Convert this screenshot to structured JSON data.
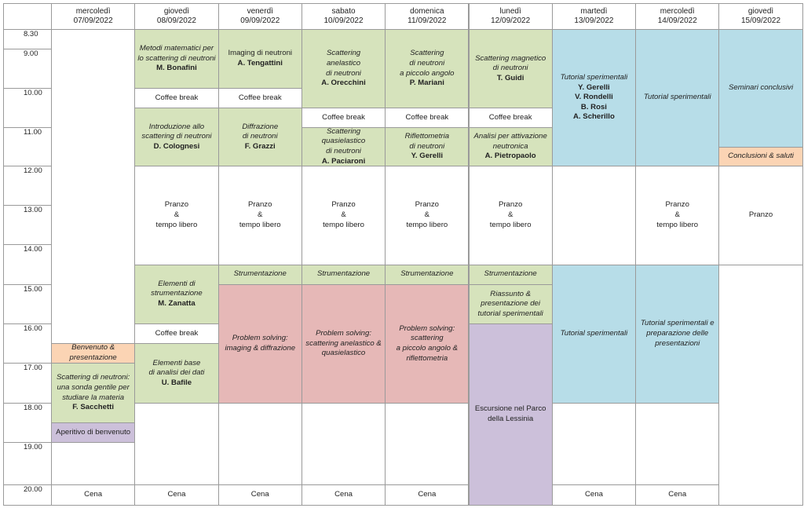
{
  "days": [
    {
      "name": "mercoledì",
      "date": "07/09/2022"
    },
    {
      "name": "giovedì",
      "date": "08/09/2022"
    },
    {
      "name": "venerdì",
      "date": "09/09/2022"
    },
    {
      "name": "sabato",
      "date": "10/09/2022"
    },
    {
      "name": "domenica",
      "date": "11/09/2022"
    },
    {
      "name": "lunedì",
      "date": "12/09/2022"
    },
    {
      "name": "martedì",
      "date": "13/09/2022"
    },
    {
      "name": "mercoledì",
      "date": "14/09/2022"
    },
    {
      "name": "giovedì",
      "date": "15/09/2022"
    }
  ],
  "times": [
    "8.30",
    "9.00",
    "10.00",
    "11.00",
    "12.00",
    "13.00",
    "14.00",
    "15.00",
    "16.00",
    "17.00",
    "18.00",
    "19.00",
    "20.00"
  ],
  "colors": {
    "green": "#d6e3bc",
    "blue": "#b7dde8",
    "pink": "#e6b8b7",
    "purple": "#ccc0da",
    "orange": "#fbd4b4"
  },
  "cells": [
    {
      "day": 0,
      "start": "8.30",
      "end": "16.30",
      "color": "white",
      "lines": []
    },
    {
      "day": 0,
      "start": "16.30",
      "end": "17.00",
      "color": "orange",
      "lines": [
        {
          "t": "Benvenuto &",
          "s": "i"
        },
        {
          "t": "presentazione",
          "s": "i"
        }
      ]
    },
    {
      "day": 0,
      "start": "17.00",
      "end": "18.30",
      "color": "green",
      "lines": [
        {
          "t": "Scattering di neutroni:",
          "s": "i"
        },
        {
          "t": "una sonda gentile per",
          "s": "i"
        },
        {
          "t": "studiare la materia",
          "s": "i"
        },
        {
          "t": "F. Sacchetti",
          "s": "b"
        }
      ]
    },
    {
      "day": 0,
      "start": "18.30",
      "end": "19.00",
      "color": "purple",
      "lines": [
        {
          "t": "Aperitivo di benvenuto",
          "s": "n"
        }
      ]
    },
    {
      "day": 0,
      "start": "19.00",
      "end": "20.00",
      "color": "white",
      "lines": []
    },
    {
      "day": 0,
      "start": "20.00",
      "end": "20.30",
      "color": "white",
      "lines": [
        {
          "t": "Cena",
          "s": "n"
        }
      ]
    },
    {
      "day": 1,
      "start": "8.30",
      "end": "10.00",
      "color": "green",
      "lines": [
        {
          "t": "Metodi matematici per",
          "s": "i"
        },
        {
          "t": "lo scattering di neutroni",
          "s": "i"
        },
        {
          "t": "M. Bonafini",
          "s": "b"
        }
      ]
    },
    {
      "day": 1,
      "start": "10.00",
      "end": "10.30",
      "color": "white",
      "lines": [
        {
          "t": "Coffee break",
          "s": "n"
        }
      ]
    },
    {
      "day": 1,
      "start": "10.30",
      "end": "12.00",
      "color": "green",
      "lines": [
        {
          "t": "Introduzione allo",
          "s": "i"
        },
        {
          "t": "scattering di neutroni",
          "s": "i"
        },
        {
          "t": "D. Colognesi",
          "s": "b"
        }
      ]
    },
    {
      "day": 1,
      "start": "12.00",
      "end": "14.30",
      "color": "white",
      "lines": [
        {
          "t": "Pranzo",
          "s": "n"
        },
        {
          "t": "&",
          "s": "n"
        },
        {
          "t": "tempo libero",
          "s": "n"
        }
      ]
    },
    {
      "day": 1,
      "start": "14.30",
      "end": "16.00",
      "color": "green",
      "lines": [
        {
          "t": "Elementi di",
          "s": "i"
        },
        {
          "t": "strumentazione",
          "s": "i"
        },
        {
          "t": "M. Zanatta",
          "s": "b"
        }
      ]
    },
    {
      "day": 1,
      "start": "16.00",
      "end": "16.30",
      "color": "white",
      "lines": [
        {
          "t": "Coffee break",
          "s": "n"
        }
      ]
    },
    {
      "day": 1,
      "start": "16.30",
      "end": "18.00",
      "color": "green",
      "lines": [
        {
          "t": "Elementi base",
          "s": "i"
        },
        {
          "t": "di analisi dei dati",
          "s": "i"
        },
        {
          "t": "U. Bafile",
          "s": "b"
        }
      ]
    },
    {
      "day": 1,
      "start": "18.00",
      "end": "20.00",
      "color": "white",
      "lines": []
    },
    {
      "day": 1,
      "start": "20.00",
      "end": "20.30",
      "color": "white",
      "lines": [
        {
          "t": "Cena",
          "s": "n"
        }
      ]
    },
    {
      "day": 2,
      "start": "8.30",
      "end": "10.00",
      "color": "green",
      "lines": [
        {
          "t": "Imaging di neutroni",
          "s": "n"
        },
        {
          "t": "A. Tengattini",
          "s": "b"
        }
      ]
    },
    {
      "day": 2,
      "start": "10.00",
      "end": "10.30",
      "color": "white",
      "lines": [
        {
          "t": "Coffee break",
          "s": "n"
        }
      ]
    },
    {
      "day": 2,
      "start": "10.30",
      "end": "12.00",
      "color": "green",
      "lines": [
        {
          "t": "Diffrazione",
          "s": "i"
        },
        {
          "t": "di neutroni",
          "s": "i"
        },
        {
          "t": "F. Grazzi",
          "s": "b"
        }
      ]
    },
    {
      "day": 2,
      "start": "12.00",
      "end": "14.30",
      "color": "white",
      "lines": [
        {
          "t": "Pranzo",
          "s": "n"
        },
        {
          "t": "&",
          "s": "n"
        },
        {
          "t": "tempo libero",
          "s": "n"
        }
      ]
    },
    {
      "day": 2,
      "start": "14.30",
      "end": "15.00",
      "color": "green",
      "lines": [
        {
          "t": "Strumentazione",
          "s": "i"
        }
      ]
    },
    {
      "day": 2,
      "start": "15.00",
      "end": "18.00",
      "color": "pink",
      "lines": [
        {
          "t": "Problem solving:",
          "s": "i"
        },
        {
          "t": "imaging & diffrazione",
          "s": "i"
        }
      ]
    },
    {
      "day": 2,
      "start": "18.00",
      "end": "20.00",
      "color": "white",
      "lines": []
    },
    {
      "day": 2,
      "start": "20.00",
      "end": "20.30",
      "color": "white",
      "lines": [
        {
          "t": "Cena",
          "s": "n"
        }
      ]
    },
    {
      "day": 3,
      "start": "8.30",
      "end": "10.30",
      "color": "green",
      "lines": [
        {
          "t": "Scattering",
          "s": "i"
        },
        {
          "t": "anelastico",
          "s": "i"
        },
        {
          "t": "di neutroni",
          "s": "i"
        },
        {
          "t": "A. Orecchini",
          "s": "b"
        }
      ]
    },
    {
      "day": 3,
      "start": "10.30",
      "end": "11.00",
      "color": "white",
      "lines": [
        {
          "t": "Coffee break",
          "s": "n"
        }
      ]
    },
    {
      "day": 3,
      "start": "11.00",
      "end": "12.00",
      "color": "green",
      "lines": [
        {
          "t": "Scattering",
          "s": "i"
        },
        {
          "t": "quasielastico",
          "s": "i"
        },
        {
          "t": "di neutroni",
          "s": "i"
        },
        {
          "t": "A. Paciaroni",
          "s": "b"
        }
      ]
    },
    {
      "day": 3,
      "start": "12.00",
      "end": "14.30",
      "color": "white",
      "lines": [
        {
          "t": "Pranzo",
          "s": "n"
        },
        {
          "t": "&",
          "s": "n"
        },
        {
          "t": "tempo libero",
          "s": "n"
        }
      ]
    },
    {
      "day": 3,
      "start": "14.30",
      "end": "15.00",
      "color": "green",
      "lines": [
        {
          "t": "Strumentazione",
          "s": "i"
        }
      ]
    },
    {
      "day": 3,
      "start": "15.00",
      "end": "18.00",
      "color": "pink",
      "lines": [
        {
          "t": "Problem solving:",
          "s": "i"
        },
        {
          "t": "scattering anelastico &",
          "s": "i"
        },
        {
          "t": "quasielastico",
          "s": "i"
        }
      ]
    },
    {
      "day": 3,
      "start": "18.00",
      "end": "20.00",
      "color": "white",
      "lines": []
    },
    {
      "day": 3,
      "start": "20.00",
      "end": "20.30",
      "color": "white",
      "lines": [
        {
          "t": "Cena",
          "s": "n"
        }
      ]
    },
    {
      "day": 4,
      "start": "8.30",
      "end": "10.30",
      "color": "green",
      "lines": [
        {
          "t": "Scattering",
          "s": "i"
        },
        {
          "t": "di neutroni",
          "s": "i"
        },
        {
          "t": "a piccolo angolo",
          "s": "i"
        },
        {
          "t": "P. Mariani",
          "s": "b"
        }
      ]
    },
    {
      "day": 4,
      "start": "10.30",
      "end": "11.00",
      "color": "white",
      "lines": [
        {
          "t": "Coffee break",
          "s": "n"
        }
      ]
    },
    {
      "day": 4,
      "start": "11.00",
      "end": "12.00",
      "color": "green",
      "lines": [
        {
          "t": "Riflettometria",
          "s": "i"
        },
        {
          "t": "di neutroni",
          "s": "i"
        },
        {
          "t": "Y. Gerelli",
          "s": "b"
        }
      ]
    },
    {
      "day": 4,
      "start": "12.00",
      "end": "14.30",
      "color": "white",
      "lines": [
        {
          "t": "Pranzo",
          "s": "n"
        },
        {
          "t": "&",
          "s": "n"
        },
        {
          "t": "tempo libero",
          "s": "n"
        }
      ]
    },
    {
      "day": 4,
      "start": "14.30",
      "end": "15.00",
      "color": "green",
      "lines": [
        {
          "t": "Strumentazione",
          "s": "i"
        }
      ]
    },
    {
      "day": 4,
      "start": "15.00",
      "end": "18.00",
      "color": "pink",
      "lines": [
        {
          "t": "Problem solving:",
          "s": "i"
        },
        {
          "t": "scattering",
          "s": "i"
        },
        {
          "t": "a piccolo angolo &",
          "s": "i"
        },
        {
          "t": "riflettometria",
          "s": "i"
        }
      ]
    },
    {
      "day": 4,
      "start": "18.00",
      "end": "20.00",
      "color": "white",
      "lines": []
    },
    {
      "day": 4,
      "start": "20.00",
      "end": "20.30",
      "color": "white",
      "lines": [
        {
          "t": "Cena",
          "s": "n"
        }
      ]
    },
    {
      "day": 5,
      "start": "8.30",
      "end": "10.30",
      "color": "green",
      "lines": [
        {
          "t": "Scattering magnetico",
          "s": "i"
        },
        {
          "t": "di neutroni",
          "s": "i"
        },
        {
          "t": "T. Guidi",
          "s": "b"
        }
      ]
    },
    {
      "day": 5,
      "start": "10.30",
      "end": "11.00",
      "color": "white",
      "lines": [
        {
          "t": "Coffee break",
          "s": "n"
        }
      ]
    },
    {
      "day": 5,
      "start": "11.00",
      "end": "12.00",
      "color": "green",
      "lines": [
        {
          "t": "Analisi per attivazione",
          "s": "i"
        },
        {
          "t": "neutronica",
          "s": "i"
        },
        {
          "t": "A. Pietropaolo",
          "s": "b"
        }
      ]
    },
    {
      "day": 5,
      "start": "12.00",
      "end": "14.30",
      "color": "white",
      "lines": [
        {
          "t": "Pranzo",
          "s": "n"
        },
        {
          "t": "&",
          "s": "n"
        },
        {
          "t": "tempo libero",
          "s": "n"
        }
      ]
    },
    {
      "day": 5,
      "start": "14.30",
      "end": "15.00",
      "color": "green",
      "lines": [
        {
          "t": "Strumentazione",
          "s": "i"
        }
      ]
    },
    {
      "day": 5,
      "start": "15.00",
      "end": "16.00",
      "color": "green",
      "lines": [
        {
          "t": "Riassunto &",
          "s": "i"
        },
        {
          "t": "presentazione dei",
          "s": "i"
        },
        {
          "t": "tutorial sperimentali",
          "s": "i"
        }
      ]
    },
    {
      "day": 5,
      "start": "16.00",
      "end": "20.30",
      "color": "purple",
      "lines": [
        {
          "t": "Escursione nel Parco",
          "s": "n"
        },
        {
          "t": "della Lessinia",
          "s": "n"
        }
      ]
    },
    {
      "day": 6,
      "start": "8.30",
      "end": "12.00",
      "color": "blue",
      "lines": [
        {
          "t": "Tutorial sperimentali",
          "s": "i"
        },
        {
          "t": "Y. Gerelli",
          "s": "b"
        },
        {
          "t": "V. Rondelli",
          "s": "b"
        },
        {
          "t": "B. Rosi",
          "s": "b"
        },
        {
          "t": "A. Scherillo",
          "s": "b"
        }
      ]
    },
    {
      "day": 6,
      "start": "12.00",
      "end": "14.30",
      "color": "white",
      "lines": []
    },
    {
      "day": 6,
      "start": "14.30",
      "end": "18.00",
      "color": "blue",
      "lines": [
        {
          "t": "Tutorial sperimentali",
          "s": "i"
        }
      ]
    },
    {
      "day": 6,
      "start": "18.00",
      "end": "20.00",
      "color": "white",
      "lines": []
    },
    {
      "day": 6,
      "start": "20.00",
      "end": "20.30",
      "color": "white",
      "lines": [
        {
          "t": "Cena",
          "s": "n"
        }
      ]
    },
    {
      "day": 7,
      "start": "8.30",
      "end": "12.00",
      "color": "blue",
      "lines": [
        {
          "t": "Tutorial sperimentali",
          "s": "i"
        }
      ]
    },
    {
      "day": 7,
      "start": "12.00",
      "end": "14.30",
      "color": "white",
      "lines": [
        {
          "t": "Pranzo",
          "s": "n"
        },
        {
          "t": "&",
          "s": "n"
        },
        {
          "t": "tempo libero",
          "s": "n"
        }
      ]
    },
    {
      "day": 7,
      "start": "14.30",
      "end": "18.00",
      "color": "blue",
      "lines": [
        {
          "t": "Tutorial sperimentali e",
          "s": "i"
        },
        {
          "t": "preparazione delle",
          "s": "i"
        },
        {
          "t": "presentazioni",
          "s": "i"
        }
      ]
    },
    {
      "day": 7,
      "start": "18.00",
      "end": "20.00",
      "color": "white",
      "lines": []
    },
    {
      "day": 7,
      "start": "20.00",
      "end": "20.30",
      "color": "white",
      "lines": [
        {
          "t": "Cena",
          "s": "n"
        }
      ]
    },
    {
      "day": 8,
      "start": "8.30",
      "end": "11.30",
      "color": "blue",
      "lines": [
        {
          "t": "Seminari conclusivi",
          "s": "i"
        }
      ]
    },
    {
      "day": 8,
      "start": "11.30",
      "end": "12.00",
      "color": "orange",
      "lines": [
        {
          "t": "Conclusioni & saluti",
          "s": "i"
        }
      ]
    },
    {
      "day": 8,
      "start": "12.00",
      "end": "14.30",
      "color": "white",
      "lines": [
        {
          "t": "Pranzo",
          "s": "n"
        }
      ]
    },
    {
      "day": 8,
      "start": "14.30",
      "end": "20.30",
      "color": "white",
      "lines": []
    }
  ]
}
